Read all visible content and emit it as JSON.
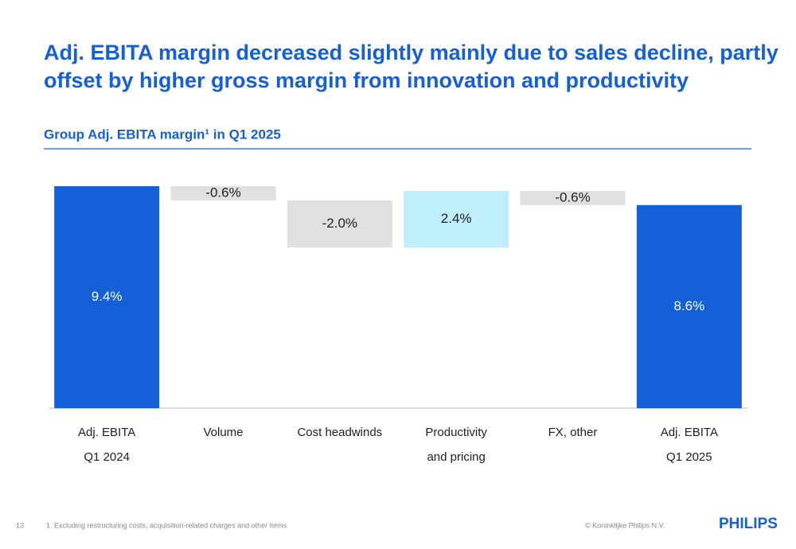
{
  "header": {
    "title": [
      "Adj. EBITA margin decreased slightly mainly due to sales decline, partly",
      "offset by higher gross margin from innovation and productivity"
    ]
  },
  "chart_data": {
    "type": "waterfall",
    "subtitle": "Group Adj. EBITA margin¹ in Q1 2025",
    "categories": [
      [
        "Adj. EBITA",
        "Q1 2024"
      ],
      [
        "Volume"
      ],
      [
        "Cost headwinds"
      ],
      [
        "Productivity",
        "and pricing"
      ],
      [
        "FX, other"
      ],
      [
        "Adj. EBITA",
        "Q1 2025"
      ]
    ],
    "values": [
      9.4,
      -0.6,
      -2.0,
      2.4,
      -0.6,
      8.6
    ],
    "value_labels": [
      "9.4%",
      "-0.6%",
      "-2.0%",
      "2.4%",
      "-0.6%",
      "8.6%"
    ],
    "measure": [
      "absolute",
      "relative",
      "relative",
      "relative",
      "relative",
      "absolute"
    ],
    "colors": {
      "total": "#1560d8",
      "increase": "#bfeffd",
      "decrease": "#e0e0e0"
    }
  },
  "footer": {
    "page": "13",
    "footnote": "1. Excluding restructuring costs, acquisition-related charges and other items",
    "copyright": "© Koninklijke Philips N.V.",
    "logo": "PHILIPS"
  }
}
